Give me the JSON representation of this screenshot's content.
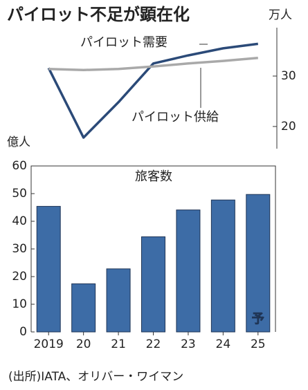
{
  "title": "パイロット不足が顕在化",
  "source": "(出所)IATA、オリバー・ワイマン",
  "chart_data": [
    {
      "type": "line",
      "unit": "万人",
      "ylim": [
        15.6,
        39.6
      ],
      "yticks": [
        20,
        30
      ],
      "series": [
        {
          "name": "パイロット需要",
          "color": "#2b4a78",
          "values": [
            31.6,
            17.8,
            24.8,
            32.5,
            34.1,
            35.5,
            36.4
          ]
        },
        {
          "name": "パイロット供給",
          "color": "#a9a9a9",
          "values": [
            31.4,
            31.2,
            31.4,
            31.9,
            32.5,
            33.0,
            33.6
          ]
        }
      ]
    },
    {
      "type": "bar",
      "title": "旅客数",
      "unit": "億人",
      "categories": [
        "2019",
        "20",
        "21",
        "22",
        "23",
        "24",
        "25"
      ],
      "values": [
        45.4,
        17.4,
        22.8,
        34.4,
        44.1,
        47.7,
        49.7
      ],
      "color": "#3d6ca6",
      "annotation": "予",
      "ylim": [
        0,
        60
      ],
      "yticks": [
        0,
        10,
        20,
        30,
        40,
        50,
        60
      ]
    }
  ]
}
